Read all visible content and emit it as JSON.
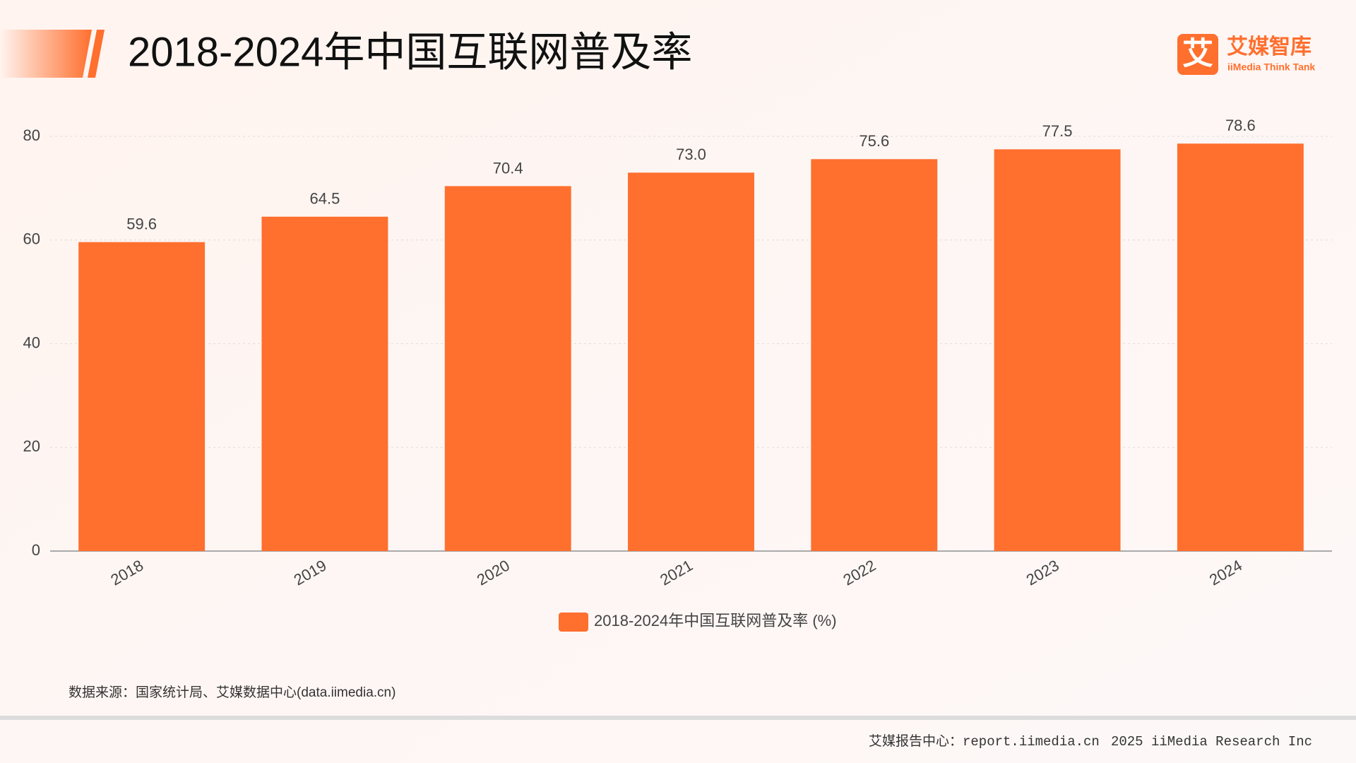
{
  "header": {
    "logo_mark": "艾",
    "logo_cn": "艾媒智库",
    "logo_en": "iiMedia Think Tank"
  },
  "chart_data": {
    "type": "bar",
    "title": "2018-2024年中国互联网普及率",
    "categories": [
      "2018",
      "2019",
      "2020",
      "2021",
      "2022",
      "2023",
      "2024"
    ],
    "series": [
      {
        "name": "2018-2024年中国互联网普及率 (%)",
        "color": "#ff6f2e",
        "values": [
          59.6,
          64.5,
          70.4,
          73.0,
          75.6,
          77.5,
          78.6
        ],
        "value_labels": [
          "59.6",
          "64.5",
          "70.4",
          "73.0",
          "75.6",
          "77.5",
          "78.6"
        ]
      }
    ],
    "ylim": [
      0,
      80
    ],
    "yticks": [
      0,
      20,
      40,
      60,
      80
    ],
    "grid": true
  },
  "source": "数据来源：国家统计局、艾媒数据中心(data.iimedia.cn)",
  "footer": [
    "艾媒报告中心：report.iimedia.cn",
    "2025 iiMedia Research Inc"
  ]
}
